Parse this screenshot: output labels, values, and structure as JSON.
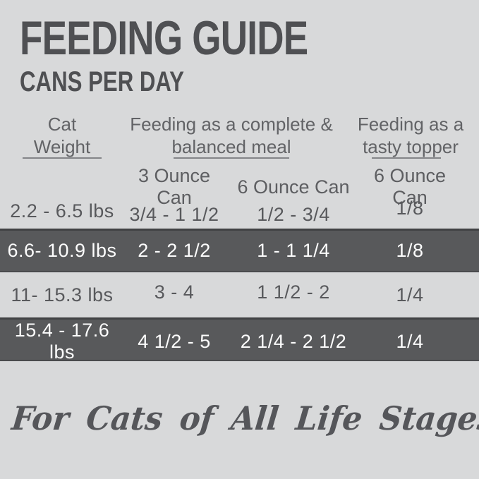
{
  "colors": {
    "background": "#d8d9da",
    "ink_dark": "#4f5053",
    "ink_body": "#5d5e61",
    "highlight_row_bg": "#58595b",
    "highlight_row_text": "#ffffff",
    "underline": "#848588"
  },
  "title": "FEEDING GUIDE",
  "subtitle": "CANS PER DAY",
  "header": {
    "weight_line1": "Cat",
    "weight_line2": "Weight",
    "complete_line1": "Feeding as a complete &",
    "complete_line2": "balanced meal",
    "topper_line1": "Feeding as a",
    "topper_line2": "tasty topper",
    "sub_complete_3oz": "3 Ounce Can",
    "sub_complete_6oz": "6 Ounce Can",
    "sub_topper_6oz": "6 Ounce Can"
  },
  "rows": [
    {
      "weight": "2.2 - 6.5 lbs",
      "meal_3oz": "3/4 - 1 1/2",
      "meal_6oz": "1/2 - 3/4",
      "topper_6oz": "1/8",
      "highlighted": false
    },
    {
      "weight": "6.6- 10.9 lbs",
      "meal_3oz": "2 - 2 1/2",
      "meal_6oz": "1 - 1 1/4",
      "topper_6oz": "1/8",
      "highlighted": true
    },
    {
      "weight": "11- 15.3 lbs",
      "meal_3oz": "3 - 4",
      "meal_6oz": "1 1/2 - 2",
      "topper_6oz": "1/4",
      "highlighted": false
    },
    {
      "weight": "15.4 - 17.6 lbs",
      "meal_3oz": "4 1/2 - 5",
      "meal_6oz": "2 1/4 - 2 1/2",
      "topper_6oz": "1/4",
      "highlighted": true
    }
  ],
  "footer": {
    "tagline": "For Cats of All Life Stages"
  },
  "chart_data": {
    "type": "table",
    "title": "FEEDING GUIDE",
    "subtitle": "CANS PER DAY",
    "column_groups": [
      {
        "label": "Cat Weight",
        "spans": [
          0
        ]
      },
      {
        "label": "Feeding as a complete & balanced meal",
        "spans": [
          1,
          2
        ]
      },
      {
        "label": "Feeding as a tasty topper",
        "spans": [
          3
        ]
      }
    ],
    "columns": [
      "Cat Weight",
      "3 Ounce Can",
      "6 Ounce Can",
      "6 Ounce Can"
    ],
    "rows": [
      [
        "2.2 - 6.5 lbs",
        "3/4 - 1 1/2",
        "1/2 - 3/4",
        "1/8"
      ],
      [
        "6.6- 10.9 lbs",
        "2 - 2 1/2",
        "1 - 1 1/4",
        "1/8"
      ],
      [
        "11- 15.3 lbs",
        "3 - 4",
        "1 1/2 - 2",
        "1/4"
      ],
      [
        "15.4 - 17.6 lbs",
        "4 1/2 - 5",
        "2 1/4 - 2 1/2",
        "1/4"
      ]
    ],
    "highlighted_rows": [
      1,
      3
    ],
    "footnote": "For Cats of All Life Stages"
  }
}
